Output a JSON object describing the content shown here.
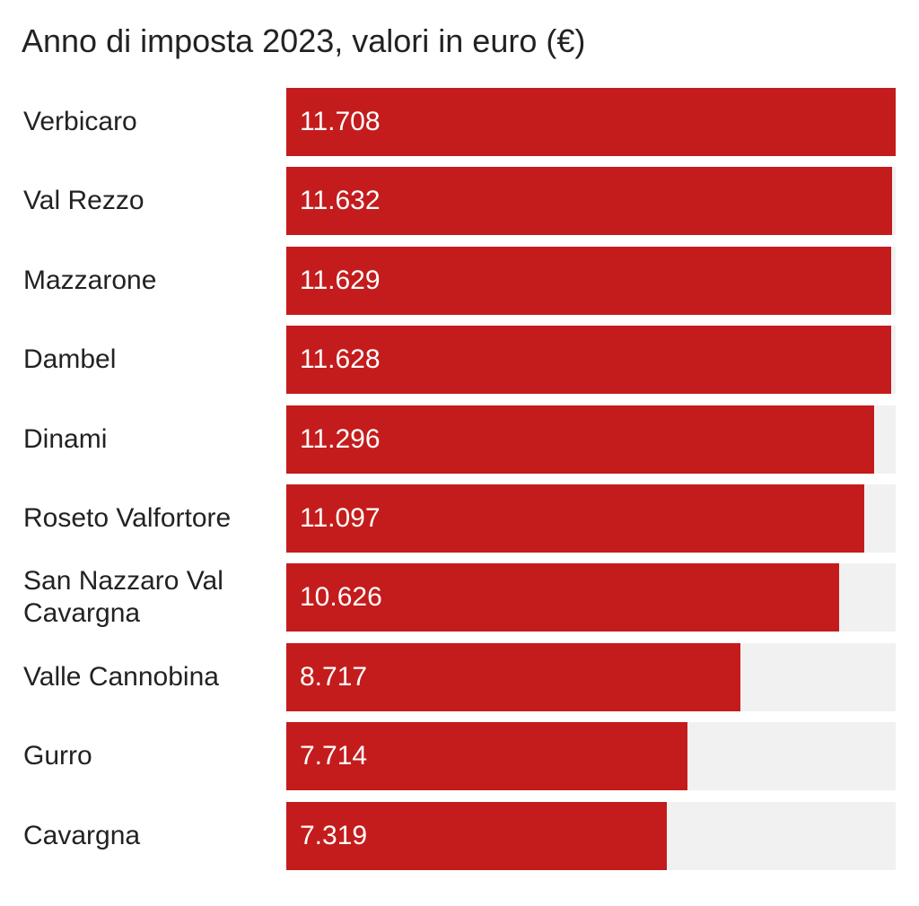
{
  "colors": {
    "bar": "#c41c1c",
    "track": "#f1f1f2",
    "text": "#222222",
    "value_text": "#ffffff"
  },
  "chart_data": {
    "type": "bar",
    "orientation": "horizontal",
    "title": "Anno di imposta 2023, valori in euro (€)",
    "categories": [
      "Verbicaro",
      "Val Rezzo",
      "Mazzarone",
      "Dambel",
      "Dinami",
      "Roseto Valfortore",
      "San Nazzaro Val Cavargna",
      "Valle Cannobina",
      "Gurro",
      "Cavargna"
    ],
    "values": [
      11708,
      11632,
      11629,
      11628,
      11296,
      11097,
      10626,
      8717,
      7714,
      7319
    ],
    "value_labels": [
      "11.708",
      "11.632",
      "11.629",
      "11.628",
      "11.296",
      "11.097",
      "10.626",
      "8.717",
      "7.714",
      "7.319"
    ],
    "xlim": [
      0,
      11708
    ],
    "grid": false,
    "legend": "none"
  }
}
